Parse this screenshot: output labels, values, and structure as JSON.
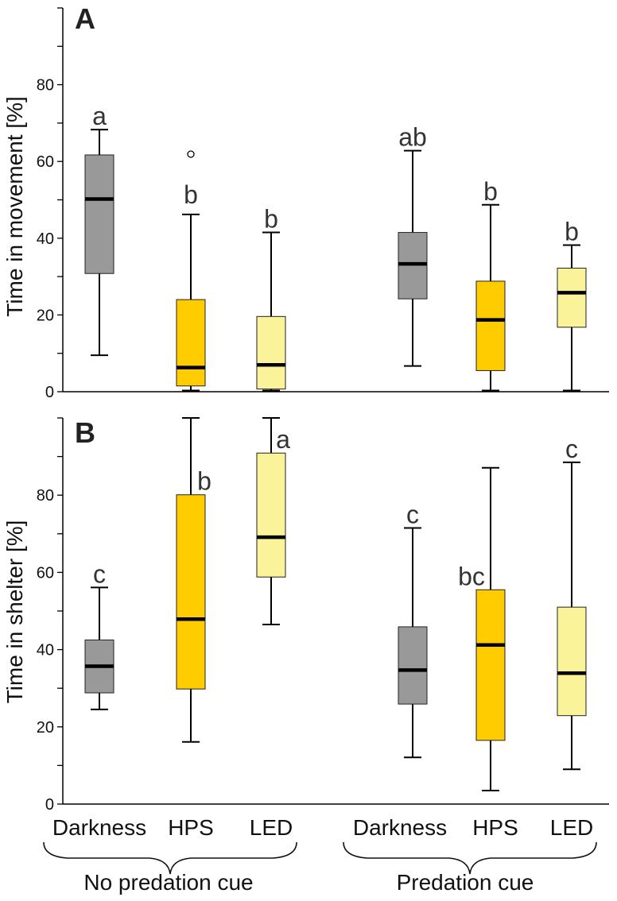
{
  "chart_data": [
    {
      "type": "box",
      "panel": "A",
      "ylabel": "Time in movement [%]",
      "ylim": [
        0,
        100
      ],
      "yticks": [
        0,
        20,
        40,
        60,
        80
      ],
      "groups": [
        "No predation cue",
        "Predation cue"
      ],
      "series": [
        {
          "group": "No predation cue",
          "category": "Darkness",
          "light": "darkness",
          "min": 9.5,
          "q1": 30.8,
          "median": 50.2,
          "q3": 61.7,
          "max": 68.3,
          "outliers": [],
          "letter": "a"
        },
        {
          "group": "No predation cue",
          "category": "HPS",
          "light": "hps",
          "min": 0.3,
          "q1": 1.5,
          "median": 6.3,
          "q3": 24.0,
          "max": 46.2,
          "outliers": [
            61.9
          ],
          "letter": "b"
        },
        {
          "group": "No predation cue",
          "category": "LED",
          "light": "led",
          "min": 0.3,
          "q1": 0.7,
          "median": 7.0,
          "q3": 19.6,
          "max": 41.5,
          "outliers": [],
          "letter": "b"
        },
        {
          "group": "Predation cue",
          "category": "Darkness",
          "light": "darkness",
          "min": 6.7,
          "q1": 24.2,
          "median": 33.3,
          "q3": 41.5,
          "max": 62.8,
          "outliers": [],
          "letter": "ab"
        },
        {
          "group": "Predation cue",
          "category": "HPS",
          "light": "hps",
          "min": 0.3,
          "q1": 5.5,
          "median": 18.7,
          "q3": 28.8,
          "max": 48.7,
          "outliers": [],
          "letter": "b"
        },
        {
          "group": "Predation cue",
          "category": "LED",
          "light": "led",
          "min": 0.3,
          "q1": 16.8,
          "median": 25.8,
          "q3": 32.2,
          "max": 38.2,
          "outliers": [],
          "letter": "b"
        }
      ]
    },
    {
      "type": "box",
      "panel": "B",
      "ylabel": "Time in shelter [%]",
      "ylim": [
        0,
        100
      ],
      "yticks": [
        0,
        20,
        40,
        60,
        80
      ],
      "groups": [
        "No predation cue",
        "Predation cue"
      ],
      "series": [
        {
          "group": "No predation cue",
          "category": "Darkness",
          "light": "darkness",
          "min": 24.5,
          "q1": 28.8,
          "median": 35.7,
          "q3": 42.5,
          "max": 56.1,
          "outliers": [],
          "letter": "c"
        },
        {
          "group": "No predation cue",
          "category": "HPS",
          "light": "hps",
          "min": 16.1,
          "q1": 29.8,
          "median": 47.9,
          "q3": 80.1,
          "max": 100.0,
          "outliers": [],
          "letter": "b"
        },
        {
          "group": "No predation cue",
          "category": "LED",
          "light": "led",
          "min": 46.5,
          "q1": 58.8,
          "median": 69.1,
          "q3": 90.9,
          "max": 100.0,
          "outliers": [],
          "letter": "a"
        },
        {
          "group": "Predation cue",
          "category": "Darkness",
          "light": "darkness",
          "min": 12.1,
          "q1": 25.9,
          "median": 34.7,
          "q3": 45.9,
          "max": 71.5,
          "outliers": [],
          "letter": "c"
        },
        {
          "group": "Predation cue",
          "category": "HPS",
          "light": "hps",
          "min": 3.5,
          "q1": 16.5,
          "median": 41.2,
          "q3": 55.5,
          "max": 87.1,
          "outliers": [],
          "letter": "bc"
        },
        {
          "group": "Predation cue",
          "category": "LED",
          "light": "led",
          "min": 9.0,
          "q1": 22.9,
          "median": 33.9,
          "q3": 51.0,
          "max": 88.5,
          "outliers": [],
          "letter": "c"
        }
      ]
    }
  ],
  "colors": {
    "darkness": "#999999",
    "hps": "#ffcc00",
    "led": "#fbf39a",
    "median": "#000000",
    "axis": "#000000"
  },
  "x_labels": [
    "Darkness",
    "HPS",
    "LED",
    "Darkness",
    "HPS",
    "LED"
  ],
  "group_labels": [
    "No predation cue",
    "Predation cue"
  ]
}
